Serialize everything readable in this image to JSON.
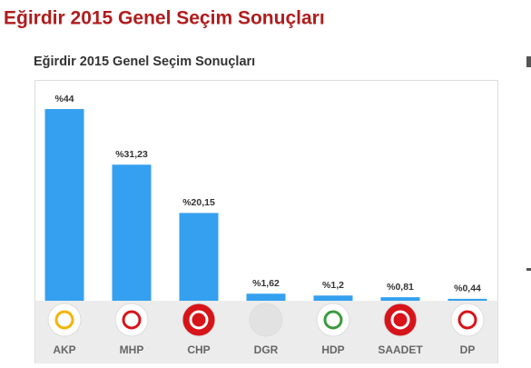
{
  "chart_data": {
    "type": "bar",
    "title": "Eğirdir 2015 Genel Seçim Sonuçları",
    "subtitle": "Eğirdir 2015 Genel Seçim Sonuçları",
    "categories": [
      "AKP",
      "MHP",
      "CHP",
      "DGR",
      "HDP",
      "SAADET",
      "DP"
    ],
    "values": [
      44,
      31.23,
      20.15,
      1.62,
      1.2,
      0.81,
      0.44
    ],
    "value_labels": [
      "%44",
      "%31,23",
      "%20,15",
      "%1,62",
      "%1,2",
      "%0,81",
      "%0,44"
    ],
    "color": "#35a0ef"
  }
}
